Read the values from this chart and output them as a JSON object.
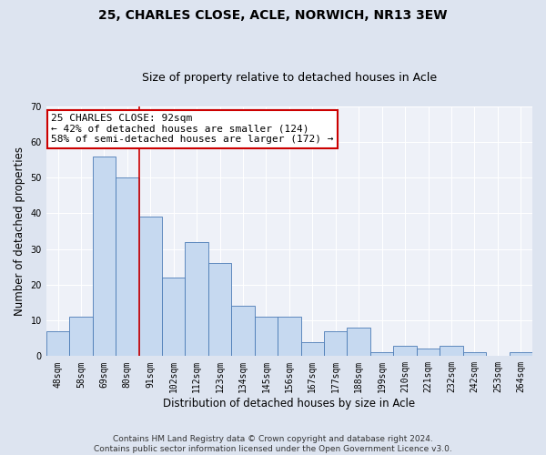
{
  "title": "25, CHARLES CLOSE, ACLE, NORWICH, NR13 3EW",
  "subtitle": "Size of property relative to detached houses in Acle",
  "xlabel": "Distribution of detached houses by size in Acle",
  "ylabel": "Number of detached properties",
  "categories": [
    "48sqm",
    "58sqm",
    "69sqm",
    "80sqm",
    "91sqm",
    "102sqm",
    "112sqm",
    "123sqm",
    "134sqm",
    "145sqm",
    "156sqm",
    "167sqm",
    "177sqm",
    "188sqm",
    "199sqm",
    "210sqm",
    "221sqm",
    "232sqm",
    "242sqm",
    "253sqm",
    "264sqm"
  ],
  "values": [
    7,
    11,
    56,
    50,
    39,
    22,
    32,
    26,
    14,
    11,
    11,
    4,
    7,
    8,
    1,
    3,
    2,
    3,
    1,
    0,
    1
  ],
  "bar_color": "#c6d9f0",
  "bar_edge_color": "#4a7ab5",
  "vline_color": "#cc0000",
  "annotation_line1": "25 CHARLES CLOSE: 92sqm",
  "annotation_line2": "← 42% of detached houses are smaller (124)",
  "annotation_line3": "58% of semi-detached houses are larger (172) →",
  "annotation_box_color": "#ffffff",
  "annotation_box_edge_color": "#cc0000",
  "ylim": [
    0,
    70
  ],
  "yticks": [
    0,
    10,
    20,
    30,
    40,
    50,
    60,
    70
  ],
  "footer": "Contains HM Land Registry data © Crown copyright and database right 2024.\nContains public sector information licensed under the Open Government Licence v3.0.",
  "background_color": "#dde4f0",
  "plot_background_color": "#eef1f8",
  "title_fontsize": 10,
  "subtitle_fontsize": 9,
  "axis_label_fontsize": 8.5,
  "tick_fontsize": 7,
  "footer_fontsize": 6.5,
  "annotation_fontsize": 8
}
